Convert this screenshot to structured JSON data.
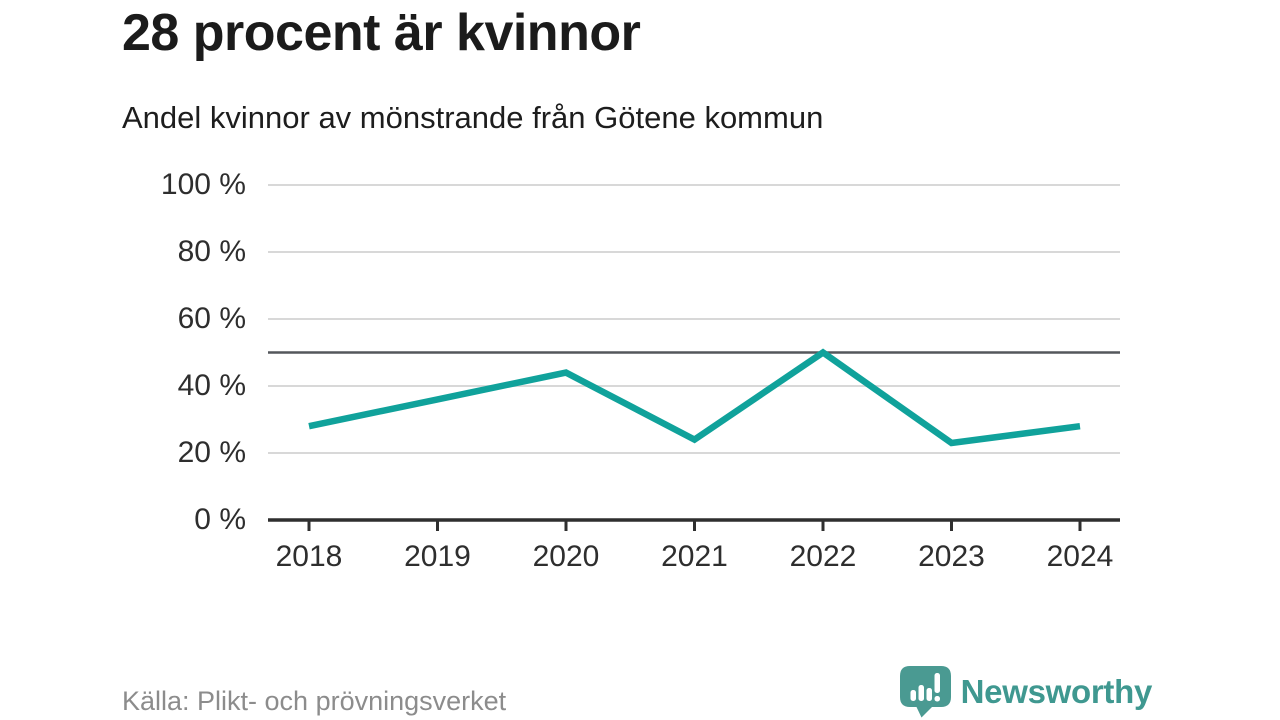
{
  "header": {
    "title": "28 procent är kvinnor",
    "subtitle": "Andel kvinnor av mönstrande från Götene kommun"
  },
  "chart_data": {
    "type": "line",
    "title": "28 procent är kvinnor",
    "subtitle": "Andel kvinnor av mönstrande från Götene kommun",
    "categories": [
      "2018",
      "2019",
      "2020",
      "2021",
      "2022",
      "2023",
      "2024"
    ],
    "series": [
      {
        "name": "Andel kvinnor av mönstrande",
        "values": [
          28,
          36,
          44,
          24,
          50,
          23,
          28
        ]
      }
    ],
    "xlabel": "",
    "ylabel": "",
    "ylim": [
      0,
      100
    ],
    "yticks": [
      100,
      80,
      60,
      40,
      20,
      0
    ],
    "ytick_labels": [
      "100 %",
      "80 %",
      "60 %",
      "40 %",
      "20 %",
      "0 %"
    ],
    "reference_line": 50,
    "grid": "horizontal",
    "legend": "none",
    "colors": {
      "line": "#10a29b",
      "reference_line": "#54575b",
      "gridline": "#d8d8d8",
      "axis": "#2f2f2f",
      "tick_label": "#2e2e2e"
    }
  },
  "footer": {
    "source": "Källa: Plikt- och prövningsverket",
    "brand": "Newsworthy",
    "brand_color": "#3f9890",
    "logo_color": "#4a9a92"
  }
}
